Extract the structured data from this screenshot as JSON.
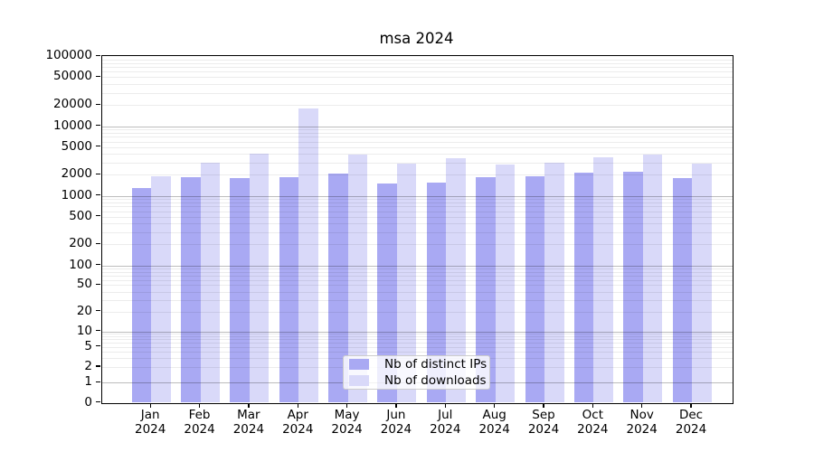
{
  "title": "msa 2024",
  "chart_data": {
    "type": "bar",
    "title": "msa 2024",
    "categories": [
      "Jan 2024",
      "Feb 2024",
      "Mar 2024",
      "Apr 2024",
      "May 2024",
      "Jun 2024",
      "Jul 2024",
      "Aug 2024",
      "Sep 2024",
      "Oct 2024",
      "Nov 2024",
      "Dec 2024"
    ],
    "series": [
      {
        "name": "Nb of distinct IPs",
        "color": "#a9a9f3",
        "values": [
          1300,
          1850,
          1780,
          1820,
          2100,
          1500,
          1520,
          1840,
          1930,
          2170,
          2230,
          1780
        ]
      },
      {
        "name": "Nb of downloads",
        "color": "#d9d9f9",
        "values": [
          1900,
          3000,
          4050,
          18000,
          3900,
          2900,
          3480,
          2800,
          3000,
          3600,
          3850,
          2930
        ]
      }
    ],
    "xlabel": "",
    "ylabel": "",
    "yscale": "symlog",
    "ylim": [
      0,
      100000
    ],
    "ytick_labels": [
      "0",
      "1",
      "2",
      "5",
      "10",
      "20",
      "50",
      "100",
      "200",
      "500",
      "1000",
      "2000",
      "5000",
      "10000",
      "20000",
      "50000",
      "100000"
    ],
    "grid": true,
    "gridline_decades": [
      1,
      10,
      100,
      1000,
      10000
    ],
    "legend_position": "inside lower center",
    "plot_border_color": "#000000",
    "background_color": "#ffffff"
  }
}
